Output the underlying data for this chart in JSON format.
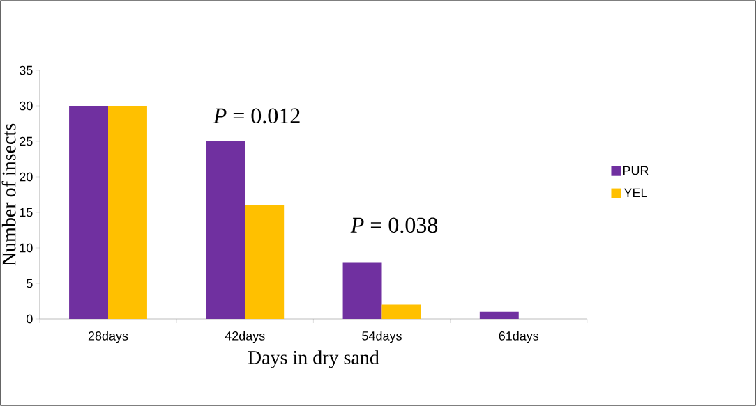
{
  "chart_data": {
    "type": "bar",
    "xlabel": "Days in dry sand",
    "ylabel": "Number of insects",
    "categories": [
      "28days",
      "42days",
      "54days",
      "61days"
    ],
    "series": [
      {
        "name": "PUR",
        "color": "#7030a0",
        "values": [
          30,
          25,
          8,
          1
        ]
      },
      {
        "name": "YEL",
        "color": "#ffc000",
        "values": [
          30,
          16,
          2,
          0
        ]
      }
    ],
    "ylim": [
      0,
      35
    ],
    "yticks": [
      0,
      5,
      10,
      15,
      20,
      25,
      30,
      35
    ],
    "legend": "right",
    "annotations": [
      "*P* = 0.012",
      "*P* = 0.038"
    ]
  }
}
